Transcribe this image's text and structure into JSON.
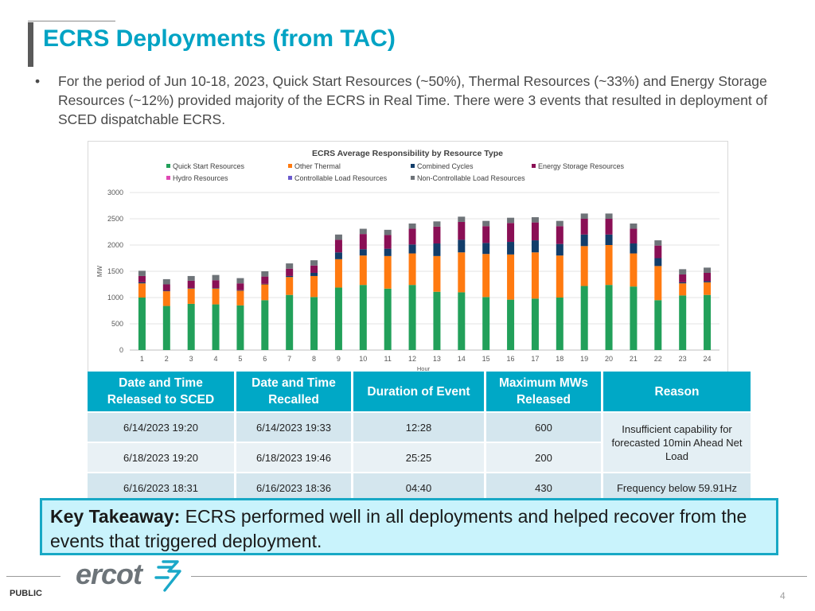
{
  "slide": {
    "title": "ECRS Deployments (from TAC)",
    "bullet": "For the period of Jun 10-18, 2023, Quick Start Resources (~50%), Thermal Resources (~33%) and Energy Storage Resources (~12%) provided majority of the ECRS in Real Time. There were 3 events that resulted in deployment of SCED dispatchable ECRS.",
    "bullet_marker": "•"
  },
  "chart_data": {
    "type": "bar",
    "stacked": true,
    "title": "ECRS Average Responsibility by Resource Type",
    "xlabel": "Hour",
    "ylabel": "MW",
    "ylim": [
      0,
      3000
    ],
    "yticks": [
      0,
      500,
      1000,
      1500,
      2000,
      2500,
      3000
    ],
    "categories": [
      "1",
      "2",
      "3",
      "4",
      "5",
      "6",
      "7",
      "8",
      "9",
      "10",
      "11",
      "12",
      "13",
      "14",
      "15",
      "16",
      "17",
      "18",
      "19",
      "20",
      "21",
      "22",
      "23",
      "24"
    ],
    "legend_position": "top",
    "series": [
      {
        "name": "Quick Start Resources",
        "color": "#22a05a",
        "values": [
          1000,
          840,
          880,
          870,
          850,
          950,
          1050,
          1010,
          1190,
          1240,
          1170,
          1240,
          1110,
          1100,
          1010,
          960,
          980,
          1000,
          1220,
          1240,
          1210,
          950,
          1040,
          1050
        ]
      },
      {
        "name": "Other Thermal",
        "color": "#ff7a10",
        "values": [
          270,
          280,
          290,
          300,
          280,
          300,
          340,
          400,
          540,
          560,
          620,
          600,
          680,
          760,
          820,
          860,
          880,
          800,
          760,
          760,
          630,
          650,
          230,
          240
        ]
      },
      {
        "name": "Combined Cycles",
        "color": "#123d6a",
        "values": [
          20,
          10,
          10,
          10,
          10,
          10,
          20,
          60,
          130,
          120,
          140,
          170,
          240,
          240,
          210,
          240,
          230,
          220,
          220,
          200,
          190,
          150,
          20,
          20
        ]
      },
      {
        "name": "Energy Storage Resources",
        "color": "#8a0f55",
        "values": [
          120,
          120,
          140,
          150,
          130,
          140,
          140,
          140,
          240,
          290,
          260,
          300,
          320,
          340,
          320,
          360,
          340,
          340,
          300,
          300,
          280,
          240,
          150,
          160
        ]
      },
      {
        "name": "Hydro Resources",
        "color": "#e048b4",
        "values": [
          0,
          0,
          0,
          0,
          0,
          0,
          0,
          0,
          0,
          0,
          0,
          0,
          0,
          0,
          0,
          0,
          0,
          0,
          0,
          0,
          0,
          0,
          0,
          0
        ]
      },
      {
        "name": "Controllable Load Resources",
        "color": "#6a5acd",
        "values": [
          0,
          0,
          0,
          0,
          0,
          0,
          0,
          0,
          0,
          0,
          0,
          0,
          0,
          0,
          0,
          0,
          0,
          0,
          0,
          0,
          0,
          0,
          0,
          0
        ]
      },
      {
        "name": "Non-Controllable Load Resources",
        "color": "#6e7378",
        "values": [
          100,
          100,
          90,
          100,
          100,
          100,
          100,
          100,
          100,
          100,
          100,
          100,
          100,
          100,
          100,
          100,
          100,
          100,
          100,
          100,
          100,
          100,
          100,
          100
        ]
      }
    ]
  },
  "table": {
    "headers": [
      "Date and Time Released to SCED",
      "Date and Time Recalled",
      "Duration of Event",
      "Maximum MWs Released",
      "Reason"
    ],
    "rows": [
      [
        "6/14/2023 19:20",
        "6/14/2023 19:33",
        "12:28",
        "600"
      ],
      [
        "6/18/2023 19:20",
        "6/18/2023 19:46",
        "25:25",
        "200"
      ],
      [
        "6/16/2023 18:31",
        "6/16/2023 18:36",
        "04:40",
        "430"
      ]
    ],
    "reason_1": "Insufficient capability for forecasted 10min Ahead Net Load",
    "reason_2": "Frequency below 59.91Hz"
  },
  "takeaway": {
    "label": "Key Takeaway:",
    "text": " ECRS performed well in all deployments and helped recover from the events that triggered deployment."
  },
  "footer": {
    "logo_text": "ercot",
    "classification": "PUBLIC",
    "page_number": "4"
  }
}
